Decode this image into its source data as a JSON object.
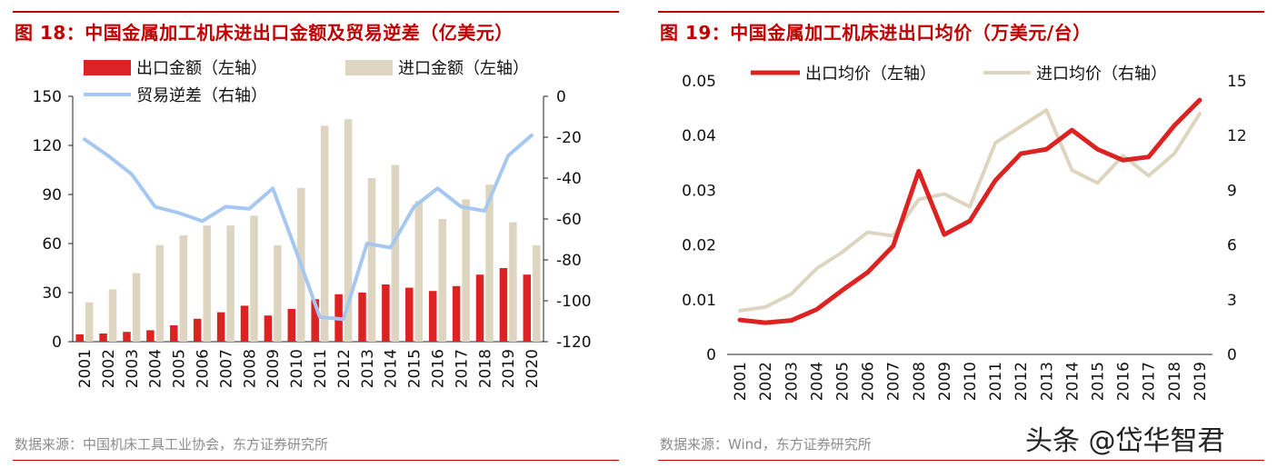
{
  "left": {
    "title": "图 18：中国金属加工机床进出口金额及贸易逆差（亿美元）",
    "source": "数据来源：中国机床工具工业协会，东方证券研究所",
    "colors": {
      "export": "#dd2222",
      "import": "#ddd5c0",
      "deficit": "#a6c8f0"
    },
    "chart_data": {
      "type": "bar",
      "categories": [
        "2001",
        "2002",
        "2003",
        "2004",
        "2005",
        "2006",
        "2007",
        "2008",
        "2009",
        "2010",
        "2011",
        "2012",
        "2013",
        "2014",
        "2015",
        "2016",
        "2017",
        "2018",
        "2019",
        "2020"
      ],
      "left_axis": {
        "ylim": [
          0,
          150
        ],
        "ticks": [
          "0",
          "30",
          "60",
          "90",
          "120",
          "150"
        ]
      },
      "right_axis": {
        "ylim": [
          -120,
          0
        ],
        "ticks": [
          "-120",
          "-100",
          "-80",
          "-60",
          "-40",
          "-20",
          "0"
        ]
      },
      "series": [
        {
          "name": "出口金额（左轴）",
          "type": "bar",
          "axis": "left",
          "values": [
            4.5,
            5,
            6,
            7,
            10,
            14,
            18,
            22,
            16,
            20,
            26,
            29,
            30,
            35,
            33,
            31,
            34,
            41,
            45,
            41
          ]
        },
        {
          "name": "进口金额（左轴）",
          "type": "bar",
          "axis": "left",
          "values": [
            24,
            32,
            42,
            59,
            65,
            71,
            71,
            77,
            59,
            94,
            132,
            136,
            100,
            108,
            86,
            75,
            87,
            96,
            73,
            59
          ]
        },
        {
          "name": "贸易逆差（右轴）",
          "type": "line",
          "axis": "right",
          "values": [
            -21,
            -29,
            -38,
            -54,
            -57,
            -61,
            -54,
            -55,
            -45,
            -76,
            -108,
            -109,
            -72,
            -74,
            -54,
            -45,
            -54,
            -56,
            -29,
            -19
          ]
        }
      ]
    }
  },
  "right": {
    "title": "图 19：中国金属加工机床进出口均价（万美元/台）",
    "source": "数据来源：Wind，东方证券研究所",
    "colors": {
      "export": "#dd2222",
      "import": "#ddd5c0"
    },
    "chart_data": {
      "type": "line",
      "categories": [
        "2001",
        "2002",
        "2003",
        "2004",
        "2005",
        "2006",
        "2007",
        "2008",
        "2009",
        "2010",
        "2011",
        "2012",
        "2013",
        "2014",
        "2015",
        "2016",
        "2017",
        "2018",
        "2019"
      ],
      "left_axis": {
        "ylim": [
          0,
          0.05
        ],
        "ticks": [
          "0",
          "0.01",
          "0.02",
          "0.03",
          "0.04",
          "0.05"
        ]
      },
      "right_axis": {
        "ylim": [
          0,
          15
        ],
        "ticks": [
          "0",
          "3",
          "6",
          "9",
          "12",
          "15"
        ]
      },
      "series": [
        {
          "name": "出口均价（左轴）",
          "axis": "left",
          "values": [
            0.0063,
            0.0058,
            0.0062,
            0.0082,
            0.0117,
            0.015,
            0.0198,
            0.0335,
            0.0219,
            0.0244,
            0.0318,
            0.0367,
            0.0375,
            0.041,
            0.0375,
            0.0355,
            0.0361,
            0.0418,
            0.0465
          ]
        },
        {
          "name": "进口均价（右轴）",
          "axis": "right",
          "values": [
            2.4,
            2.6,
            3.3,
            4.7,
            5.6,
            6.7,
            6.5,
            8.5,
            8.8,
            8.1,
            11.6,
            12.5,
            13.4,
            10.1,
            9.4,
            10.9,
            9.8,
            11.0,
            13.2
          ]
        }
      ]
    }
  },
  "watermark": "头条 @岱华智君"
}
